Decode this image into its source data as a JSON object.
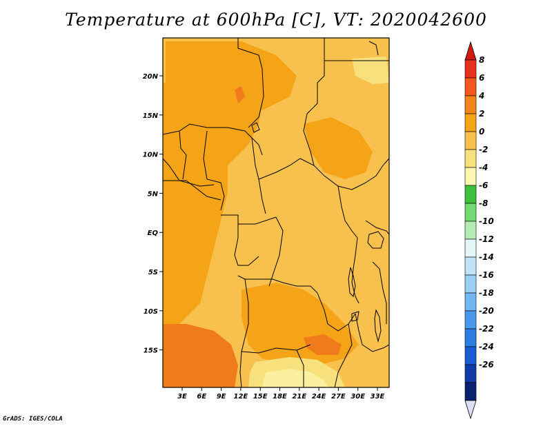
{
  "title": "Temperature at 600hPa [C], VT: 2020042600",
  "footer": "GrADS: IGES/COLA",
  "map": {
    "lon_labels": [
      "3E",
      "6E",
      "9E",
      "12E",
      "15E",
      "18E",
      "21E",
      "24E",
      "27E",
      "30E",
      "33E"
    ],
    "lat_labels": [
      "20N",
      "15N",
      "10N",
      "5N",
      "EQ",
      "5S",
      "10S",
      "15S"
    ],
    "colors": {
      "cat_m2_0": "#f8e17c",
      "cat_0_2": "#f8c04c",
      "cat_2_4": "#f5a418",
      "cat_4_6": "#f07b1a",
      "border": "#000000"
    }
  },
  "colorbar": {
    "labels": [
      "8",
      "6",
      "4",
      "2",
      "0",
      "-2",
      "-4",
      "-6",
      "-8",
      "-10",
      "-12",
      "-14",
      "-16",
      "-18",
      "-20",
      "-22",
      "-24",
      "-26"
    ],
    "colors": [
      "#e8301e",
      "#f2581c",
      "#f5841b",
      "#f5a418",
      "#f8c04c",
      "#f8e17c",
      "#fbf6b0",
      "#3ebf3e",
      "#72da72",
      "#b4ecb4",
      "#e3f6f8",
      "#c1e3f7",
      "#9ccff6",
      "#72b6f2",
      "#4a9aeb",
      "#2d7ee3",
      "#1a5ccf",
      "#0e3ba8",
      "#0a2070"
    ],
    "end_top": "#d11a14",
    "end_bottom": "#dcdff6"
  }
}
